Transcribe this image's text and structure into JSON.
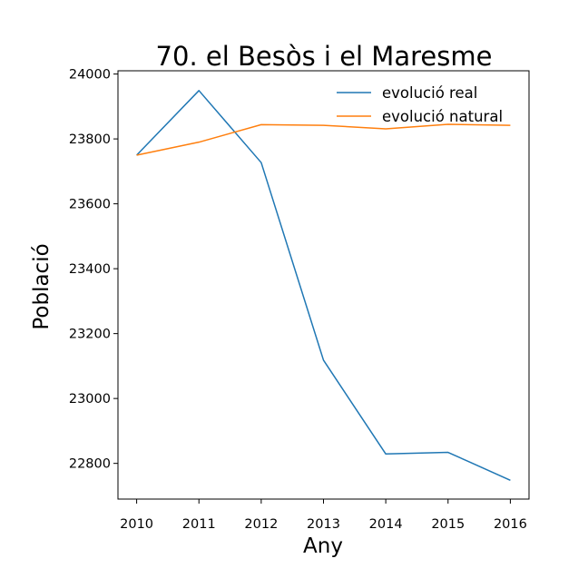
{
  "chart_data": {
    "type": "line",
    "title": "70. el Besòs i el Maresme",
    "xlabel": "Any",
    "ylabel": "Població",
    "x": [
      2010,
      2011,
      2012,
      2013,
      2014,
      2015,
      2016
    ],
    "x_tick_labels": [
      "2010",
      "2011",
      "2012",
      "2013",
      "2014",
      "2015",
      "2016"
    ],
    "y_ticks": [
      22800,
      23000,
      23200,
      23400,
      23600,
      23800,
      24000
    ],
    "y_tick_labels": [
      "22800",
      "23000",
      "23200",
      "23400",
      "23600",
      "23800",
      "24000"
    ],
    "ylim": [
      22690,
      24010
    ],
    "xlim": [
      2009.7,
      2016.3
    ],
    "grid": false,
    "legend_position": "top-right",
    "series": [
      {
        "name": "evolució real",
        "color": "#1f77b4",
        "values": [
          23750,
          23949,
          23727,
          23118,
          22829,
          22834,
          22748
        ]
      },
      {
        "name": "evolució natural",
        "color": "#ff7f0e",
        "values": [
          23750,
          23790,
          23844,
          23842,
          23831,
          23845,
          23842
        ]
      }
    ]
  }
}
